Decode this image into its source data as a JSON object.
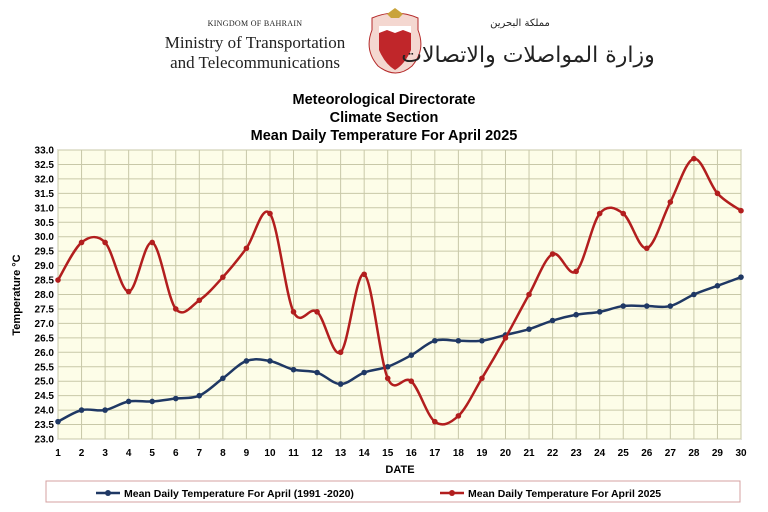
{
  "header": {
    "kingdom": "KINGDOM OF BAHRAIN",
    "ministry_line1": "Ministry of Transportation",
    "ministry_line2": "and Telecommunications",
    "ministry_arabic": "وزارة المواصلات والاتصالات",
    "kingdom_arabic": "مملكة البحرين",
    "emblem_icon": "bahrain-emblem-icon"
  },
  "colors": {
    "background": "#ffffff",
    "plot_background": "#fdfde8",
    "grid": "#c8c8a8",
    "series_1": "#1f3864",
    "series_2": "#b21e1e"
  },
  "chart_data": {
    "type": "line",
    "title": "Meteorological Directorate",
    "subtitle": "Climate Section",
    "subtitle2": "Mean Daily Temperature For April 2025",
    "xlabel": "DATE",
    "ylabel": "Temperature °C",
    "x": [
      1,
      2,
      3,
      4,
      5,
      6,
      7,
      8,
      9,
      10,
      11,
      12,
      13,
      14,
      15,
      16,
      17,
      18,
      19,
      20,
      21,
      22,
      23,
      24,
      25,
      26,
      27,
      28,
      29,
      30
    ],
    "xlim": [
      1,
      30
    ],
    "ylim": [
      23.0,
      33.0
    ],
    "y_ticks": [
      "23.0",
      "23.5",
      "24.0",
      "24.5",
      "25.0",
      "25.5",
      "26.0",
      "26.5",
      "27.0",
      "27.5",
      "28.0",
      "28.5",
      "29.0",
      "29.5",
      "30.0",
      "30.5",
      "31.0",
      "31.5",
      "32.0",
      "32.5",
      "33.0"
    ],
    "grid": true,
    "legend_position": "bottom",
    "series": [
      {
        "name": "Mean Daily Temperature For April (1991 -2020)",
        "color": "#1f3864",
        "values": [
          23.6,
          24.0,
          24.0,
          24.3,
          24.3,
          24.4,
          24.5,
          25.1,
          25.7,
          25.7,
          25.4,
          25.3,
          24.9,
          25.3,
          25.5,
          25.9,
          26.4,
          26.4,
          26.4,
          26.6,
          26.8,
          27.1,
          27.3,
          27.4,
          27.6,
          27.6,
          27.6,
          28.0,
          28.3,
          28.6
        ]
      },
      {
        "name": "Mean Daily Temperature For April 2025",
        "color": "#b21e1e",
        "values": [
          28.5,
          29.8,
          29.8,
          28.1,
          29.8,
          27.5,
          27.8,
          28.6,
          29.6,
          30.8,
          27.4,
          27.4,
          26.0,
          28.7,
          25.1,
          25.0,
          23.6,
          23.8,
          25.1,
          26.5,
          28.0,
          29.4,
          28.8,
          30.8,
          30.8,
          29.6,
          31.2,
          32.7,
          31.5,
          30.9
        ]
      }
    ]
  }
}
